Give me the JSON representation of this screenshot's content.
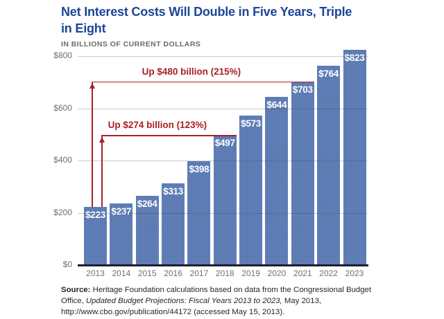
{
  "title": "Net Interest Costs Will Double in Five Years, Triple in Eight",
  "subtitle": "IN BILLIONS OF CURRENT DOLLARS",
  "chart_data": {
    "type": "bar",
    "title": "Net Interest Costs Will Double in Five Years, Triple in Eight",
    "subtitle": "IN BILLIONS OF CURRENT DOLLARS",
    "categories": [
      "2013",
      "2014",
      "2015",
      "2016",
      "2017",
      "2018",
      "2019",
      "2020",
      "2021",
      "2022",
      "2023"
    ],
    "values": [
      223,
      237,
      264,
      313,
      398,
      497,
      573,
      644,
      703,
      764,
      823
    ],
    "bar_labels": [
      "$223",
      "$237",
      "$264",
      "$313",
      "$398",
      "$497",
      "$573",
      "$644",
      "$703",
      "$764",
      "$823"
    ],
    "xlabel": "",
    "ylabel": "",
    "ylim": [
      0,
      800
    ],
    "ytick_values": [
      0,
      200,
      400,
      600,
      800
    ],
    "ytick_labels": [
      "$0",
      "$200",
      "$400",
      "$600",
      "$800"
    ],
    "grid": "horizontal",
    "legend": "none",
    "annotations": [
      {
        "label": "Up $480 billion (215%)",
        "from_year": "2013",
        "to_year": "2021",
        "delta_billions": 480,
        "percent": 215
      },
      {
        "label": "Up $274 billion (123%)",
        "from_year": "2013",
        "to_year": "2018",
        "delta_billions": 274,
        "percent": 123
      }
    ],
    "colors": {
      "bar": "#5b7ab3",
      "bar_label": "#ffffff",
      "annotation": "#a82025",
      "title": "#1b4598",
      "subtitle": "#6a6a6a",
      "axis_baseline": "#1c1c2e",
      "gridline": "#c9c9c9",
      "tick_label": "#6f6f6f"
    }
  },
  "source": {
    "prefix": "Source:",
    "text_before_italic": " Heritage Foundation calculations based on data from the Congressional Budget Office, ",
    "italic": "Updated Budget Projections: Fiscal Years 2013 to 2023,",
    "text_after_italic": " May 2013, http://www.cbo.gov/publication/44172 (accessed May 15, 2013)."
  }
}
